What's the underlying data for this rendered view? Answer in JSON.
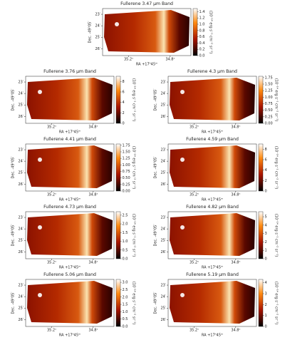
{
  "chart_data": [
    {
      "type": "heatmap",
      "title": "Fullerene 3.47 μm Band",
      "xlabel": "RA +17ʰ45ᵐ",
      "ylabel": "Dec. -49°05′",
      "colorbar_label": "(10⁻¹⁴ erg s⁻¹ cm⁻² sr⁻¹)",
      "xlim": [
        35.45,
        34.6
      ],
      "xticks": [
        {
          "value": 35.2,
          "label": "35.2ˢ"
        },
        {
          "value": 34.8,
          "label": "34.8ˢ"
        }
      ],
      "ylim": [
        22.5,
        26.6
      ],
      "yticks": [
        {
          "value": 23,
          "label": "23′"
        },
        {
          "value": 24,
          "label": "24′"
        },
        {
          "value": 25,
          "label": "25′"
        },
        {
          "value": 26,
          "label": "26′"
        }
      ],
      "clim": [
        0,
        1.5
      ],
      "cticks": [
        {
          "value": 0,
          "label": "0.0"
        },
        0.2,
        0.4,
        0.6,
        0.8,
        {
          "value": 1,
          "label": "1.0"
        },
        1.2,
        1.4
      ]
    },
    {
      "type": "heatmap",
      "title": "Fullerene 3.76 μm Band",
      "xlabel": "RA +17ʰ45ᵐ",
      "ylabel": "Dec. -49°05′",
      "colorbar_label": "(10⁻¹⁴ erg s⁻¹ cm⁻² sr⁻¹)",
      "xlim": [
        35.45,
        34.6
      ],
      "xticks": [
        {
          "value": 35.2,
          "label": "35.2ˢ"
        },
        {
          "value": 34.8,
          "label": "34.8ˢ"
        }
      ],
      "ylim": [
        22.5,
        26.6
      ],
      "yticks": [
        {
          "value": 23,
          "label": "23′"
        },
        {
          "value": 24,
          "label": "24′"
        },
        {
          "value": 25,
          "label": "25′"
        },
        {
          "value": 26,
          "label": "26′"
        }
      ],
      "clim": [
        0,
        9
      ],
      "cticks": [
        0,
        2,
        4,
        6,
        8
      ]
    },
    {
      "type": "heatmap",
      "title": "Fullerene 4.3 μm Band",
      "xlabel": "RA +17ʰ45ᵐ",
      "ylabel": "Dec. -49°05′",
      "colorbar_label": "(10⁻¹⁴ erg s⁻¹ cm⁻² sr⁻¹)",
      "xlim": [
        35.45,
        34.6
      ],
      "xticks": [
        {
          "value": 35.2,
          "label": "35.2ˢ"
        },
        {
          "value": 34.8,
          "label": "34.8ˢ"
        }
      ],
      "ylim": [
        22.5,
        26.6
      ],
      "yticks": [
        {
          "value": 23,
          "label": "23′"
        },
        {
          "value": 24,
          "label": "24′"
        },
        {
          "value": 25,
          "label": "25′"
        },
        {
          "value": 26,
          "label": "26′"
        }
      ],
      "clim": [
        0,
        1.8
      ],
      "cticks": [
        {
          "value": 0,
          "label": "0.00"
        },
        0.25,
        {
          "value": 0.5,
          "label": "0.50"
        },
        0.75,
        {
          "value": 1,
          "label": "1.00"
        },
        1.25,
        {
          "value": 1.5,
          "label": "1.50"
        },
        1.75
      ]
    },
    {
      "type": "heatmap",
      "title": "Fullerene 4.41 μm Band",
      "xlabel": "RA +17ʰ45ᵐ",
      "ylabel": "Dec. -49°05′",
      "colorbar_label": "(10⁻¹⁴ erg s⁻¹ cm⁻² sr⁻¹)",
      "xlim": [
        35.45,
        34.6
      ],
      "xticks": [
        {
          "value": 35.2,
          "label": "35.2ˢ"
        },
        {
          "value": 34.8,
          "label": "34.8ˢ"
        }
      ],
      "ylim": [
        22.5,
        26.6
      ],
      "yticks": [
        {
          "value": 23,
          "label": "23′"
        },
        {
          "value": 24,
          "label": "24′"
        },
        {
          "value": 25,
          "label": "25′"
        },
        {
          "value": 26,
          "label": "26′"
        }
      ],
      "clim": [
        0,
        1.8
      ],
      "cticks": [
        {
          "value": 0,
          "label": "0.00"
        },
        0.25,
        {
          "value": 0.5,
          "label": "0.50"
        },
        0.75,
        {
          "value": 1,
          "label": "1.00"
        },
        1.25,
        {
          "value": 1.5,
          "label": "1.50"
        },
        1.75
      ]
    },
    {
      "type": "heatmap",
      "title": "Fullerene 4.59 μm Band",
      "xlabel": "RA +17ʰ45ᵐ",
      "ylabel": "Dec. -49°05′",
      "colorbar_label": "(10⁻¹⁴ erg s⁻¹ cm⁻² sr⁻¹)",
      "xlim": [
        35.45,
        34.6
      ],
      "xticks": [
        {
          "value": 35.2,
          "label": "35.2ˢ"
        },
        {
          "value": 34.8,
          "label": "34.8ˢ"
        }
      ],
      "ylim": [
        22.5,
        26.6
      ],
      "yticks": [
        {
          "value": 23,
          "label": "23′"
        },
        {
          "value": 24,
          "label": "24′"
        },
        {
          "value": 25,
          "label": "25′"
        },
        {
          "value": 26,
          "label": "26′"
        }
      ],
      "clim": [
        0,
        9
      ],
      "cticks": [
        0,
        2,
        4,
        6,
        8
      ]
    },
    {
      "type": "heatmap",
      "title": "Fullerene 4.73 μm Band",
      "xlabel": "RA +17ʰ45ᵐ",
      "ylabel": "Dec. -49°05′",
      "colorbar_label": "(10⁻¹⁴ erg s⁻¹ cm⁻² sr⁻¹)",
      "xlim": [
        35.45,
        34.6
      ],
      "xticks": [
        {
          "value": 35.2,
          "label": "35.2ˢ"
        },
        {
          "value": 34.8,
          "label": "34.8ˢ"
        }
      ],
      "ylim": [
        22.5,
        26.6
      ],
      "yticks": [
        {
          "value": 23,
          "label": "23′"
        },
        {
          "value": 24,
          "label": "24′"
        },
        {
          "value": 25,
          "label": "25′"
        },
        {
          "value": 26,
          "label": "26′"
        }
      ],
      "clim": [
        0,
        2.7
      ],
      "cticks": [
        {
          "value": 0,
          "label": "0.0"
        },
        0.5,
        {
          "value": 1,
          "label": "1.0"
        },
        1.5,
        {
          "value": 2,
          "label": "2.0"
        },
        2.5
      ]
    },
    {
      "type": "heatmap",
      "title": "Fullerene 4.82 μm Band",
      "xlabel": "RA +17ʰ45ᵐ",
      "ylabel": "Dec. -49°05′",
      "colorbar_label": "(10⁻¹⁴ erg s⁻¹ cm⁻² sr⁻¹)",
      "xlim": [
        35.45,
        34.6
      ],
      "xticks": [
        {
          "value": 35.2,
          "label": "35.2ˢ"
        },
        {
          "value": 34.8,
          "label": "34.8ˢ"
        }
      ],
      "ylim": [
        22.5,
        26.6
      ],
      "yticks": [
        {
          "value": 23,
          "label": "23′"
        },
        {
          "value": 24,
          "label": "24′"
        },
        {
          "value": 25,
          "label": "25′"
        },
        {
          "value": 26,
          "label": "26′"
        }
      ],
      "clim": [
        0,
        5.6
      ],
      "cticks": [
        0,
        1,
        2,
        3,
        4,
        5
      ]
    },
    {
      "type": "heatmap",
      "title": "Fullerene 5.06 μm Band",
      "xlabel": "RA +17ʰ45ᵐ",
      "ylabel": "Dec. -49°05′",
      "colorbar_label": "(10⁻¹⁴ erg s⁻¹ cm⁻² sr⁻¹)",
      "xlim": [
        35.45,
        34.6
      ],
      "xticks": [
        {
          "value": 35.2,
          "label": "35.2ˢ"
        },
        {
          "value": 34.8,
          "label": "34.8ˢ"
        }
      ],
      "ylim": [
        22.5,
        26.6
      ],
      "yticks": [
        {
          "value": 23,
          "label": "23′"
        },
        {
          "value": 24,
          "label": "24′"
        },
        {
          "value": 25,
          "label": "25′"
        },
        {
          "value": 26,
          "label": "26′"
        }
      ],
      "clim": [
        0,
        3.2
      ],
      "cticks": [
        {
          "value": 0,
          "label": "0.0"
        },
        0.5,
        {
          "value": 1,
          "label": "1.0"
        },
        1.5,
        {
          "value": 2,
          "label": "2.0"
        },
        2.5,
        {
          "value": 3,
          "label": "3.0"
        }
      ]
    },
    {
      "type": "heatmap",
      "title": "Fullerene 5.19 μm Band",
      "xlabel": "RA +17ʰ45ᵐ",
      "ylabel": "Dec. -49°05′",
      "colorbar_label": "(10⁻¹⁴ erg s⁻¹ cm⁻² sr⁻¹)",
      "xlim": [
        35.45,
        34.6
      ],
      "xticks": [
        {
          "value": 35.2,
          "label": "35.2ˢ"
        },
        {
          "value": 34.8,
          "label": "34.8ˢ"
        }
      ],
      "ylim": [
        22.5,
        26.6
      ],
      "yticks": [
        {
          "value": 23,
          "label": "23′"
        },
        {
          "value": 24,
          "label": "24′"
        },
        {
          "value": 25,
          "label": "25′"
        },
        {
          "value": 26,
          "label": "26′"
        }
      ],
      "clim": [
        0,
        4.3
      ],
      "cticks": [
        0,
        1,
        2,
        3,
        4
      ]
    }
  ]
}
